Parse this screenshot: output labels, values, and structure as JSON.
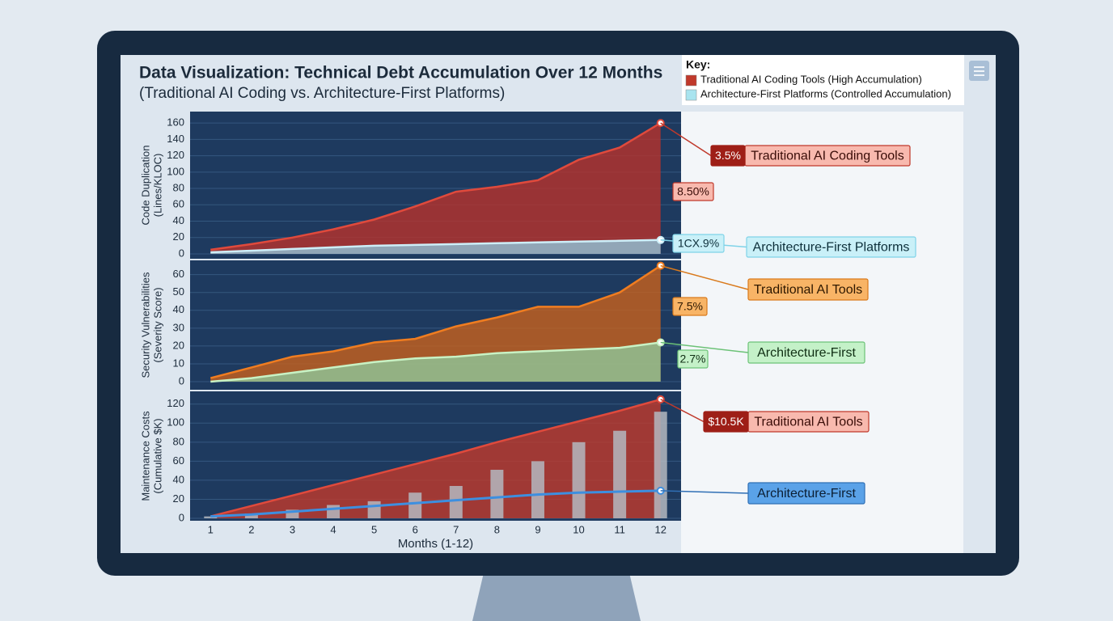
{
  "title": "Data Visualization: Technical Debt Accumulation Over 12 Months",
  "subtitle": "(Traditional AI Coding vs. Architecture-First Platforms)",
  "key": {
    "title": "Key:",
    "items": [
      {
        "label": "Traditional AI Coding Tools (High Accumulation)",
        "color": "#c0392b"
      },
      {
        "label": "Architecture-First Platforms (Controlled Accumulation)",
        "color": "#a9e4ef"
      }
    ]
  },
  "chart_data": [
    {
      "type": "area",
      "ylabel": [
        "Code Duplication",
        "(Lines/KLOC)"
      ],
      "x": [
        1,
        2,
        3,
        4,
        5,
        6,
        7,
        8,
        9,
        10,
        11,
        12
      ],
      "xlim": [
        0.5,
        12.5
      ],
      "ylim": [
        0,
        170
      ],
      "yticks": [
        0,
        20,
        40,
        60,
        80,
        100,
        120,
        140,
        160
      ],
      "grid": true,
      "series": [
        {
          "name": "Traditional AI Coding Tools",
          "color": "#e04a3c",
          "fill": "#b8322a",
          "values": [
            5,
            12,
            20,
            30,
            42,
            58,
            76,
            82,
            90,
            115,
            130,
            160
          ]
        },
        {
          "name": "Architecture-First Platforms",
          "color": "#cdeef8",
          "fill": "#8fc3d8",
          "values": [
            2,
            4,
            6,
            8,
            10,
            11,
            12,
            13,
            14,
            15,
            16,
            17
          ]
        }
      ],
      "annotations": [
        "3.5%",
        "8.50%",
        "1CX.9%"
      ]
    },
    {
      "type": "area",
      "ylabel": [
        "Security Vulnerabilities",
        "(Severity Score)"
      ],
      "x": [
        1,
        2,
        3,
        4,
        5,
        6,
        7,
        8,
        9,
        10,
        11,
        12
      ],
      "xlim": [
        0.5,
        12.5
      ],
      "ylim": [
        0,
        68
      ],
      "yticks": [
        0,
        10,
        20,
        30,
        40,
        50,
        60
      ],
      "grid": true,
      "series": [
        {
          "name": "Traditional AI Tools",
          "color": "#f07d20",
          "fill": "#c8621c",
          "values": [
            2,
            8,
            14,
            17,
            22,
            24,
            31,
            36,
            42,
            42,
            50,
            65
          ]
        },
        {
          "name": "Architecture-First",
          "color": "#c8f2c4",
          "fill": "#8fc79a",
          "values": [
            0,
            2,
            5,
            8,
            11,
            13,
            14,
            16,
            17,
            18,
            19,
            22
          ]
        }
      ],
      "annotations": [
        "7.5%",
        "2.7%"
      ]
    },
    {
      "type": "area",
      "ylabel": [
        "Maintenance Costs",
        "(Cumulative $K)"
      ],
      "x": [
        1,
        2,
        3,
        4,
        5,
        6,
        7,
        8,
        9,
        10,
        11,
        12
      ],
      "xlim": [
        0.5,
        12.5
      ],
      "xticks": [
        1,
        2,
        3,
        4,
        5,
        6,
        7,
        8,
        9,
        10,
        11,
        12
      ],
      "xlabel": "Months (1-12)",
      "ylim": [
        0,
        130
      ],
      "yticks": [
        0,
        20,
        40,
        60,
        80,
        100,
        120
      ],
      "grid": true,
      "series": [
        {
          "name": "Traditional AI Tools",
          "color": "#e04a3c",
          "fill": "#c0392b",
          "values": [
            2,
            13,
            24,
            35,
            46,
            57,
            68,
            80,
            91,
            102,
            113,
            125
          ]
        },
        {
          "type": "bar",
          "color": "#b4b8bf",
          "values": [
            2,
            5,
            9,
            14,
            18,
            27,
            34,
            51,
            60,
            80,
            92,
            112
          ]
        },
        {
          "type": "line",
          "name": "Architecture-First",
          "color": "#3d8fe0",
          "values": [
            2,
            4,
            7,
            10,
            13,
            16,
            19,
            22,
            25,
            27,
            28,
            29
          ]
        }
      ],
      "annotations": [
        "$10.5K"
      ]
    }
  ]
}
